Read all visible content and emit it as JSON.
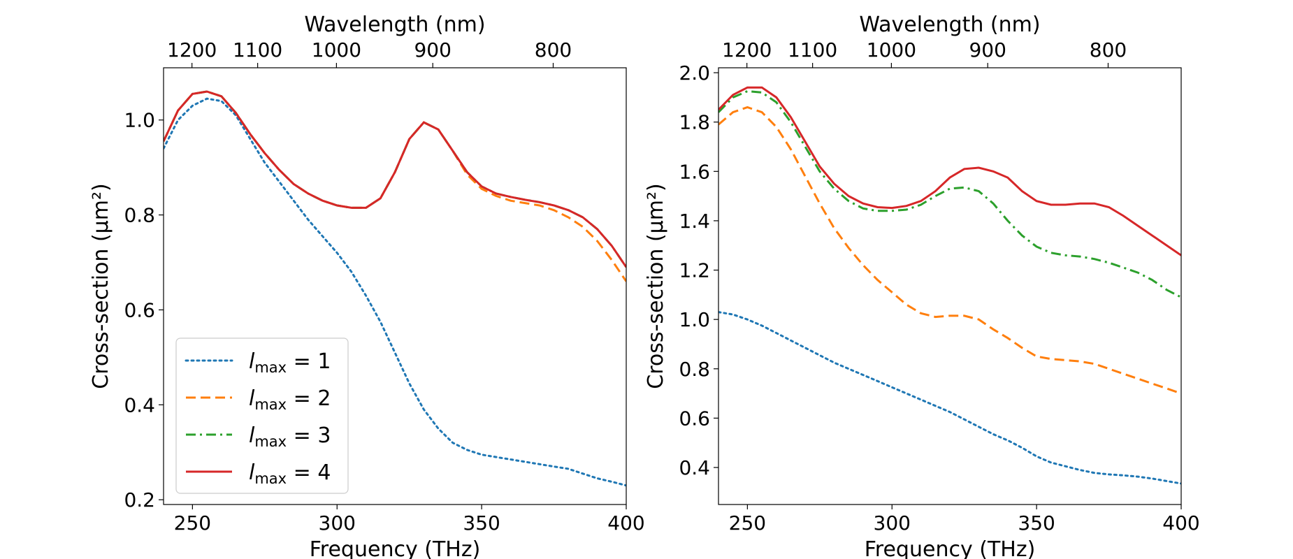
{
  "chart_data": [
    {
      "type": "line",
      "xlabel": "Frequency (THz)",
      "ylabel": "Cross-section (µm²)",
      "x2label": "Wavelength (nm)",
      "xlim": [
        240,
        400
      ],
      "ylim": [
        0.19,
        1.11
      ],
      "xticks": [
        250,
        300,
        350,
        400
      ],
      "xtick_labels": [
        "250",
        "300",
        "350",
        "400"
      ],
      "yticks": [
        0.2,
        0.4,
        0.6,
        0.8,
        1.0
      ],
      "ytick_labels": [
        "0.2",
        "0.4",
        "0.6",
        "0.8",
        "1.0"
      ],
      "x2ticks_nm": [
        1200,
        1100,
        1000,
        900,
        800
      ],
      "x2tick_labels": [
        "1200",
        "1100",
        "1000",
        "900",
        "800"
      ],
      "legend": {
        "placement": "lower-left"
      },
      "series": [
        {
          "name": "l_max = 1",
          "label_sym": "l",
          "label_sub": "max",
          "label_rhs": " = 1",
          "color": "#1f77b4",
          "style": "dotted",
          "x": [
            240,
            245,
            250,
            255,
            260,
            265,
            270,
            275,
            280,
            285,
            290,
            295,
            300,
            305,
            310,
            315,
            320,
            325,
            330,
            335,
            340,
            345,
            350,
            355,
            360,
            365,
            370,
            375,
            380,
            385,
            390,
            395,
            400
          ],
          "y": [
            0.94,
            1.0,
            1.03,
            1.045,
            1.04,
            1.01,
            0.96,
            0.91,
            0.87,
            0.83,
            0.79,
            0.755,
            0.72,
            0.68,
            0.63,
            0.575,
            0.51,
            0.445,
            0.39,
            0.35,
            0.32,
            0.305,
            0.295,
            0.29,
            0.285,
            0.28,
            0.275,
            0.27,
            0.265,
            0.255,
            0.245,
            0.238,
            0.23
          ]
        },
        {
          "name": "l_max = 2",
          "label_sym": "l",
          "label_sub": "max",
          "label_rhs": " = 2",
          "color": "#ff7f0e",
          "style": "dashed",
          "x": [
            240,
            245,
            250,
            255,
            260,
            265,
            270,
            275,
            280,
            285,
            290,
            295,
            300,
            305,
            310,
            315,
            320,
            325,
            330,
            335,
            340,
            345,
            350,
            355,
            360,
            365,
            370,
            375,
            380,
            385,
            390,
            395,
            400
          ],
          "y": [
            0.955,
            1.02,
            1.055,
            1.06,
            1.05,
            1.015,
            0.97,
            0.93,
            0.895,
            0.865,
            0.845,
            0.83,
            0.82,
            0.815,
            0.815,
            0.835,
            0.89,
            0.96,
            0.995,
            0.98,
            0.935,
            0.885,
            0.855,
            0.84,
            0.83,
            0.825,
            0.82,
            0.81,
            0.795,
            0.775,
            0.745,
            0.705,
            0.66
          ]
        },
        {
          "name": "l_max = 3",
          "label_sym": "l",
          "label_sub": "max",
          "label_rhs": " = 3",
          "color": "#2ca02c",
          "style": "dashdot",
          "x": [
            240,
            245,
            250,
            255,
            260,
            265,
            270,
            275,
            280,
            285,
            290,
            295,
            300,
            305,
            310,
            315,
            320,
            325,
            330,
            335,
            340,
            345,
            350,
            355,
            360,
            365,
            370,
            375,
            380,
            385,
            390,
            395,
            400
          ],
          "y": [
            0.955,
            1.02,
            1.055,
            1.06,
            1.05,
            1.015,
            0.97,
            0.93,
            0.895,
            0.865,
            0.845,
            0.83,
            0.82,
            0.815,
            0.815,
            0.835,
            0.89,
            0.96,
            0.995,
            0.98,
            0.935,
            0.89,
            0.86,
            0.845,
            0.838,
            0.832,
            0.827,
            0.82,
            0.81,
            0.795,
            0.77,
            0.735,
            0.69
          ]
        },
        {
          "name": "l_max = 4",
          "label_sym": "l",
          "label_sub": "max",
          "label_rhs": " = 4",
          "color": "#d62728",
          "style": "solid",
          "x": [
            240,
            245,
            250,
            255,
            260,
            265,
            270,
            275,
            280,
            285,
            290,
            295,
            300,
            305,
            310,
            315,
            320,
            325,
            330,
            335,
            340,
            345,
            350,
            355,
            360,
            365,
            370,
            375,
            380,
            385,
            390,
            395,
            400
          ],
          "y": [
            0.955,
            1.02,
            1.055,
            1.06,
            1.05,
            1.015,
            0.97,
            0.93,
            0.895,
            0.865,
            0.845,
            0.83,
            0.82,
            0.815,
            0.815,
            0.835,
            0.89,
            0.96,
            0.995,
            0.98,
            0.935,
            0.89,
            0.86,
            0.845,
            0.838,
            0.832,
            0.827,
            0.82,
            0.81,
            0.795,
            0.77,
            0.735,
            0.69
          ]
        }
      ]
    },
    {
      "type": "line",
      "xlabel": "Frequency (THz)",
      "ylabel": "Cross-section (µm²)",
      "x2label": "Wavelength (nm)",
      "xlim": [
        240,
        400
      ],
      "ylim": [
        0.25,
        2.02
      ],
      "xticks": [
        250,
        300,
        350,
        400
      ],
      "xtick_labels": [
        "250",
        "300",
        "350",
        "400"
      ],
      "yticks": [
        0.4,
        0.6,
        0.8,
        1.0,
        1.2,
        1.4,
        1.6,
        1.8,
        2.0
      ],
      "ytick_labels": [
        "0.4",
        "0.6",
        "0.8",
        "1.0",
        "1.2",
        "1.4",
        "1.6",
        "1.8",
        "2.0"
      ],
      "x2ticks_nm": [
        1200,
        1100,
        1000,
        900,
        800
      ],
      "x2tick_labels": [
        "1200",
        "1100",
        "1000",
        "900",
        "800"
      ],
      "legend": {
        "placement": "none"
      },
      "series": [
        {
          "name": "l_max = 1",
          "color": "#1f77b4",
          "style": "dotted",
          "x": [
            240,
            245,
            250,
            255,
            260,
            265,
            270,
            275,
            280,
            285,
            290,
            295,
            300,
            305,
            310,
            315,
            320,
            325,
            330,
            335,
            340,
            345,
            350,
            355,
            360,
            365,
            370,
            375,
            380,
            385,
            390,
            395,
            400
          ],
          "y": [
            1.03,
            1.02,
            1.0,
            0.975,
            0.945,
            0.915,
            0.885,
            0.855,
            0.825,
            0.8,
            0.775,
            0.75,
            0.725,
            0.7,
            0.675,
            0.65,
            0.625,
            0.595,
            0.565,
            0.535,
            0.51,
            0.48,
            0.445,
            0.42,
            0.405,
            0.39,
            0.378,
            0.372,
            0.368,
            0.363,
            0.355,
            0.345,
            0.335
          ]
        },
        {
          "name": "l_max = 2",
          "color": "#ff7f0e",
          "style": "dashed",
          "x": [
            240,
            245,
            250,
            255,
            260,
            265,
            270,
            275,
            280,
            285,
            290,
            295,
            300,
            305,
            310,
            315,
            320,
            325,
            330,
            335,
            340,
            345,
            350,
            355,
            360,
            365,
            370,
            375,
            380,
            385,
            390,
            395,
            400
          ],
          "y": [
            1.79,
            1.84,
            1.86,
            1.84,
            1.78,
            1.69,
            1.58,
            1.47,
            1.37,
            1.29,
            1.22,
            1.16,
            1.11,
            1.06,
            1.025,
            1.01,
            1.015,
            1.015,
            1.0,
            0.96,
            0.925,
            0.885,
            0.85,
            0.84,
            0.835,
            0.83,
            0.82,
            0.8,
            0.78,
            0.76,
            0.74,
            0.72,
            0.7
          ]
        },
        {
          "name": "l_max = 3",
          "color": "#2ca02c",
          "style": "dashdot",
          "x": [
            240,
            245,
            250,
            255,
            260,
            265,
            270,
            275,
            280,
            285,
            290,
            295,
            300,
            305,
            310,
            315,
            320,
            325,
            330,
            335,
            340,
            345,
            350,
            355,
            360,
            365,
            370,
            375,
            380,
            385,
            390,
            395,
            400
          ],
          "y": [
            1.84,
            1.9,
            1.925,
            1.92,
            1.88,
            1.8,
            1.7,
            1.6,
            1.53,
            1.48,
            1.45,
            1.44,
            1.44,
            1.445,
            1.465,
            1.5,
            1.53,
            1.535,
            1.52,
            1.47,
            1.4,
            1.34,
            1.295,
            1.27,
            1.26,
            1.255,
            1.245,
            1.23,
            1.21,
            1.19,
            1.16,
            1.12,
            1.09
          ]
        },
        {
          "name": "l_max = 4",
          "color": "#d62728",
          "style": "solid",
          "x": [
            240,
            245,
            250,
            255,
            260,
            265,
            270,
            275,
            280,
            285,
            290,
            295,
            300,
            305,
            310,
            315,
            320,
            325,
            330,
            335,
            340,
            345,
            350,
            355,
            360,
            365,
            370,
            375,
            380,
            385,
            390,
            395,
            400
          ],
          "y": [
            1.85,
            1.91,
            1.94,
            1.94,
            1.9,
            1.82,
            1.72,
            1.62,
            1.55,
            1.5,
            1.47,
            1.455,
            1.452,
            1.46,
            1.48,
            1.52,
            1.575,
            1.61,
            1.615,
            1.6,
            1.575,
            1.52,
            1.48,
            1.465,
            1.465,
            1.47,
            1.47,
            1.455,
            1.42,
            1.38,
            1.34,
            1.3,
            1.26
          ]
        }
      ]
    }
  ]
}
